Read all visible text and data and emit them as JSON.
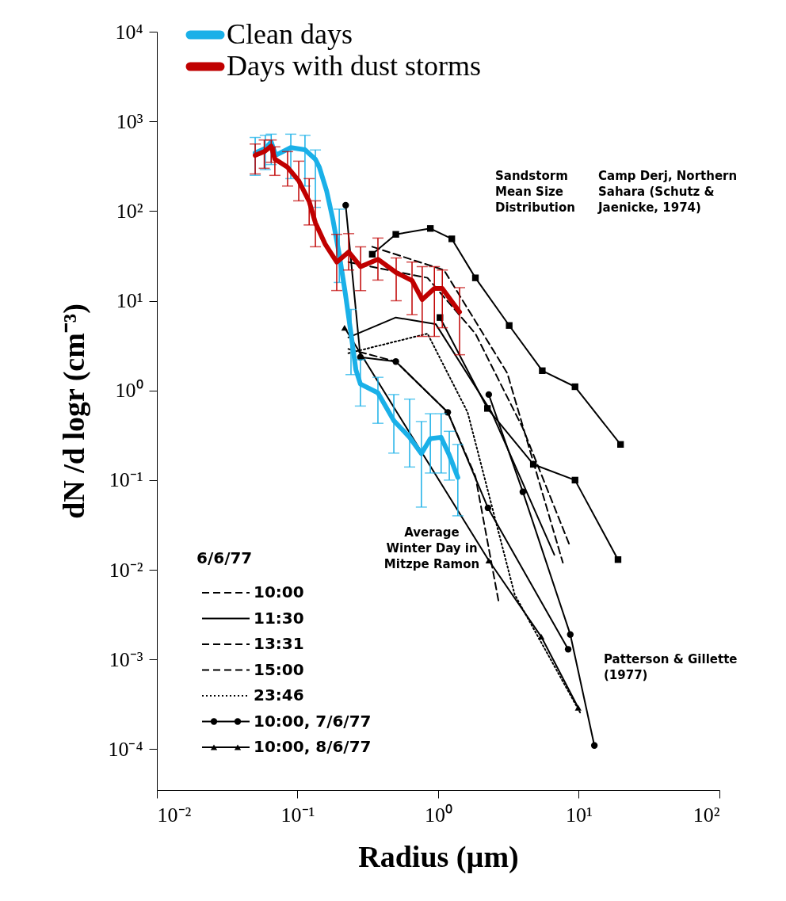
{
  "chart_data": {
    "type": "line",
    "xlabel": "Radius (µm)",
    "ylabel": "dN /d logr (cm⁻³)",
    "log": "xy",
    "grid": false,
    "legend": "top left",
    "legend_title": "6/6/77",
    "xlim": [
      0.01,
      100
    ],
    "ylim": [
      3.5e-05,
      10000
    ],
    "xticks": [
      {
        "value": 0.01,
        "label": "10⁻²"
      },
      {
        "value": 0.1,
        "label": "10⁻¹"
      },
      {
        "value": 1,
        "label": "10⁰"
      },
      {
        "value": 10,
        "label": "10¹"
      },
      {
        "value": 100,
        "label": "10²"
      }
    ],
    "yticks": [
      {
        "value": 0.0001,
        "label": "10⁻⁴"
      },
      {
        "value": 0.001,
        "label": "10⁻³"
      },
      {
        "value": 0.01,
        "label": "10⁻²"
      },
      {
        "value": 0.1,
        "label": "10⁻¹"
      },
      {
        "value": 1,
        "label": "10⁰"
      },
      {
        "value": 10,
        "label": "10¹"
      },
      {
        "value": 100,
        "label": "10²"
      },
      {
        "value": 1000,
        "label": "10³"
      },
      {
        "value": 10000,
        "label": "10⁴"
      }
    ],
    "annotations": [
      "Sandstorm\nMean Size\nDistribution",
      "Camp Derj, Northern\nSahara (Schutz &\nJaenicke, 1974)",
      "Average\nWinter Day in\nMitzpe Ramon",
      "Patterson & Gillette\n(1977)"
    ],
    "series": [
      {
        "name": "10:00",
        "color": "#000000",
        "line_style": "dashed",
        "marker": "none",
        "x": [
          0.23,
          0.84,
          1.84,
          4.0,
          8.7
        ],
        "values": [
          27,
          18,
          4.3,
          0.38,
          0.018
        ]
      },
      {
        "name": "11:30",
        "color": "#000000",
        "line_style": "solid",
        "marker": "none",
        "x": [
          0.23,
          0.5,
          0.96,
          2.4,
          6.7
        ],
        "values": [
          3.9,
          6.5,
          5.5,
          0.57,
          0.0147
        ]
      },
      {
        "name": "13:31",
        "color": "#000000",
        "line_style": "dashed",
        "marker": "none",
        "x": [
          0.23,
          0.5,
          1.17,
          1.84,
          2.7
        ],
        "values": [
          2.9,
          2.1,
          0.57,
          0.11,
          0.0043
        ]
      },
      {
        "name": "15:00",
        "color": "#000000",
        "line_style": "dashed",
        "marker": "none",
        "x": [
          0.34,
          1.1,
          3.1,
          7.7
        ],
        "values": [
          40,
          22,
          1.56,
          0.012
        ]
      },
      {
        "name": "23:46",
        "color": "#000000",
        "line_style": "dotted",
        "marker": "none",
        "x": [
          0.23,
          0.84,
          1.62,
          3.5,
          10.3
        ],
        "values": [
          2.6,
          4.3,
          0.57,
          0.0053,
          0.00025
        ]
      },
      {
        "name": "10:00, 7/6/77",
        "color": "#000000",
        "line_style": "solid",
        "marker": "circle",
        "x": [
          0.22,
          0.28,
          0.5,
          1.17,
          2.26,
          8.4
        ],
        "values": [
          116,
          2.35,
          2.1,
          0.57,
          0.049,
          0.0013
        ]
      },
      {
        "name": "10:00, 8/6/77",
        "color": "#000000",
        "line_style": "solid",
        "marker": "triangle",
        "x": [
          0.216,
          2.29,
          5.4,
          9.9
        ],
        "values": [
          5,
          0.0127,
          0.0018,
          0.00029
        ]
      },
      {
        "color": "#000000",
        "line_style": "solid",
        "marker": "square",
        "x": [
          0.34,
          0.5,
          0.88,
          1.25,
          1.84,
          3.2,
          5.5,
          9.4,
          19.8
        ],
        "values": [
          33,
          55,
          64,
          49,
          18,
          5.3,
          1.66,
          1.1,
          0.25
        ]
      },
      {
        "color": "#000000",
        "line_style": "solid",
        "marker": "square",
        "x": [
          1.03,
          2.24,
          4.75,
          9.4,
          19
        ],
        "values": [
          6.5,
          0.63,
          0.15,
          0.1,
          0.013
        ]
      },
      {
        "color": "#000000",
        "line_style": "solid",
        "marker": "circle",
        "x": [
          2.29,
          4.0,
          8.7,
          12.9
        ],
        "values": [
          0.9,
          0.074,
          0.0019,
          0.00011
        ]
      },
      {
        "name": "Clean days",
        "color": "#1ab0e8",
        "line_style": "solid",
        "marker": "none",
        "x": [
          0.05,
          0.059,
          0.065,
          0.07,
          0.0896,
          0.113,
          0.134,
          0.143,
          0.161,
          0.178,
          0.198,
          0.219,
          0.24,
          0.26,
          0.28,
          0.373,
          0.484,
          0.627,
          0.76,
          0.88,
          1.05,
          1.2,
          1.38
        ],
        "values": [
          445,
          500,
          590,
          420,
          510,
          482,
          378,
          308,
          168,
          82,
          33,
          11.9,
          4.3,
          1.7,
          1.18,
          0.94,
          0.46,
          0.3,
          0.197,
          0.29,
          0.3,
          0.19,
          0.107
        ],
        "errors": [
          [
            250,
            660
          ],
          [
            290,
            700
          ],
          [
            330,
            720
          ],
          null,
          [
            230,
            720
          ],
          [
            190,
            700
          ],
          [
            110,
            480
          ],
          null,
          null,
          null,
          [
            16,
            105
          ],
          null,
          [
            1.5,
            8
          ],
          null,
          [
            0.67,
            2.2
          ],
          [
            0.43,
            1.4
          ],
          [
            0.2,
            0.9
          ],
          [
            0.14,
            0.8
          ],
          [
            0.05,
            0.45
          ],
          [
            0.12,
            0.55
          ],
          [
            0.12,
            0.55
          ],
          [
            0.1,
            0.35
          ],
          [
            0.04,
            0.25
          ]
        ]
      },
      {
        "name": "Days with dust storms",
        "color": "#c00000",
        "line_style": "solid",
        "marker": "none",
        "x": [
          0.05,
          0.058,
          0.065,
          0.069,
          0.085,
          0.102,
          0.121,
          0.134,
          0.157,
          0.19,
          0.231,
          0.281,
          0.373,
          0.503,
          0.652,
          0.77,
          0.94,
          1.07,
          1.42
        ],
        "values": [
          418,
          460,
          530,
          380,
          308,
          218,
          128,
          74,
          43,
          27,
          35,
          24,
          29,
          20.6,
          16.8,
          10.3,
          13.7,
          13.7,
          7.5
        ],
        "errors": [
          [
            260,
            560
          ],
          [
            300,
            620
          ],
          [
            350,
            620
          ],
          [
            250,
            520
          ],
          [
            190,
            460
          ],
          [
            130,
            360
          ],
          [
            70,
            230
          ],
          [
            40,
            130
          ],
          null,
          [
            13,
            55
          ],
          [
            22,
            56
          ],
          [
            13,
            40
          ],
          [
            17,
            50
          ],
          [
            10,
            30
          ],
          [
            7,
            27
          ],
          [
            4,
            24
          ],
          [
            4,
            24
          ],
          [
            5,
            22
          ],
          [
            2.5,
            14
          ]
        ]
      }
    ]
  }
}
